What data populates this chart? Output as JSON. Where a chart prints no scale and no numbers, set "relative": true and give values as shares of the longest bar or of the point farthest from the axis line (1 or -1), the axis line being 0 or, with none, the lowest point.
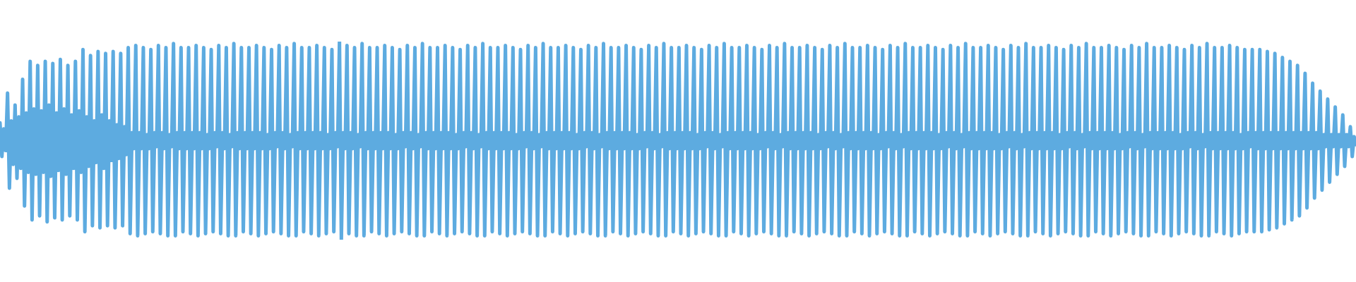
{
  "chart_data": {
    "type": "line",
    "relative": true,
    "color": "#5dabe0",
    "categories": [
      null,
      null,
      null,
      null,
      null,
      null,
      null,
      null,
      null,
      null,
      null,
      null,
      null,
      null,
      null,
      null,
      null,
      null,
      null,
      null,
      null,
      null,
      null,
      null,
      null,
      null,
      null,
      null,
      null,
      null,
      null,
      null,
      null,
      null,
      null,
      null,
      null,
      null,
      null,
      null,
      null,
      null,
      null,
      null,
      null,
      null,
      null,
      null,
      null,
      null,
      null,
      null,
      null,
      null,
      null,
      null,
      null,
      null,
      null,
      null,
      null,
      null,
      null,
      null,
      null,
      null,
      null,
      null,
      null,
      null,
      null,
      null,
      null,
      null,
      null,
      null,
      null,
      null,
      null,
      null,
      null,
      null,
      null,
      null,
      null,
      null,
      null,
      null,
      null,
      null,
      null,
      null,
      null,
      null,
      null,
      null,
      null,
      null,
      null,
      null,
      null,
      null,
      null,
      null,
      null,
      null,
      null,
      null,
      null,
      null,
      null,
      null,
      null,
      null,
      null,
      null,
      null,
      null,
      null,
      null,
      null,
      null,
      null,
      null,
      null,
      null,
      null,
      null,
      null,
      null,
      null,
      null,
      null,
      null,
      null,
      null,
      null,
      null,
      null,
      null,
      null,
      null,
      null,
      null,
      null,
      null,
      null,
      null,
      null,
      null,
      null,
      null,
      null,
      null,
      null,
      null,
      null,
      null,
      null,
      null,
      null,
      null,
      null,
      null,
      null,
      null,
      null,
      null,
      null,
      null,
      null,
      null,
      null,
      null,
      null,
      null,
      null,
      null,
      null,
      null,
      null,
      null,
      null,
      null,
      null,
      null,
      null,
      null,
      null,
      null,
      null,
      null,
      null,
      null,
      null,
      null,
      null,
      null,
      null,
      null,
      null,
      null,
      null,
      null,
      null,
      null,
      null,
      null,
      null,
      null,
      null,
      null,
      null,
      null,
      null,
      null,
      null,
      null,
      null,
      null,
      null,
      null,
      null,
      null,
      null,
      null,
      null,
      null,
      null,
      null,
      null,
      null,
      null,
      null,
      null,
      null,
      null,
      null,
      null,
      null,
      null,
      null,
      null,
      null,
      null,
      null,
      null,
      null,
      null,
      null,
      null,
      null,
      null,
      null,
      null,
      null,
      null,
      null,
      null,
      null,
      null,
      null,
      null,
      null,
      null,
      null,
      null,
      null,
      null,
      null,
      null,
      null,
      null,
      null,
      null,
      null,
      null,
      null,
      null,
      null,
      null,
      null,
      null,
      null,
      null,
      null,
      null,
      null,
      null,
      null,
      null,
      null,
      null,
      null,
      null,
      null,
      null,
      null,
      null,
      null,
      null,
      null,
      null,
      null,
      null,
      null,
      null,
      null,
      null,
      null,
      null,
      null,
      null,
      null,
      null,
      null,
      null,
      null,
      null,
      null,
      null,
      null,
      null,
      null,
      null,
      null,
      null,
      null,
      null,
      null,
      null,
      null,
      null,
      null,
      null,
      null,
      null,
      null,
      null,
      null,
      null,
      null,
      null,
      null,
      null,
      null,
      null,
      null,
      null,
      null,
      null,
      null,
      null,
      null,
      null,
      null,
      null,
      null,
      null,
      null,
      null,
      null,
      null,
      null,
      null,
      null,
      null,
      null,
      null,
      null,
      null,
      null,
      null,
      null,
      null,
      null,
      null,
      null,
      null,
      null,
      null,
      null,
      null,
      null,
      null,
      null,
      null,
      null,
      null,
      null,
      null,
      null,
      null,
      null,
      null,
      null,
      null,
      null,
      null,
      null,
      null,
      null,
      null,
      null,
      null,
      null,
      null,
      null,
      null,
      null,
      null,
      null,
      null,
      null,
      null,
      null,
      null,
      null,
      null,
      null,
      null,
      null,
      null,
      null,
      null,
      null,
      null,
      null,
      null,
      null,
      null,
      null,
      null,
      null,
      null,
      null,
      null,
      null,
      null,
      null,
      null,
      null,
      null,
      null,
      null,
      null,
      null,
      null,
      null,
      null,
      null,
      null,
      null,
      null,
      null,
      null,
      null,
      null,
      null,
      null,
      null,
      null,
      null,
      null,
      null,
      null,
      null,
      null,
      null,
      null,
      null,
      null,
      null,
      null,
      null,
      null,
      null,
      null,
      null,
      null,
      null,
      null,
      null,
      null,
      null,
      null,
      null,
      null,
      null,
      null,
      null,
      null,
      null,
      null,
      null,
      null,
      null,
      null,
      null,
      null,
      null,
      null,
      null,
      null,
      null,
      null,
      null,
      null,
      null,
      null,
      null,
      null,
      null,
      null,
      null,
      null,
      null,
      null,
      null,
      null,
      null,
      null,
      null,
      null,
      null,
      null,
      null,
      null,
      null,
      null,
      null,
      null,
      null,
      null,
      null,
      null,
      null,
      null,
      null,
      null,
      null,
      null,
      null,
      null,
      null,
      null,
      null,
      null,
      null,
      null,
      null,
      null,
      null,
      null,
      null,
      null,
      null,
      null,
      null,
      null,
      null,
      null,
      null,
      null,
      null,
      null,
      null,
      null,
      null,
      null,
      null,
      null,
      null,
      null,
      null,
      null,
      null,
      null,
      null,
      null,
      null,
      null,
      null,
      null,
      null,
      null,
      null,
      null,
      null,
      null,
      null,
      null,
      null,
      null,
      null,
      null,
      null,
      null,
      null,
      null,
      null,
      null,
      null,
      null,
      null,
      null,
      null,
      null,
      null,
      null,
      null,
      null,
      null,
      null,
      null,
      null,
      null,
      null,
      null,
      null,
      null,
      null,
      null,
      null,
      null,
      null,
      null,
      null,
      null,
      null,
      null,
      null,
      null,
      null,
      null,
      null,
      null,
      null,
      null,
      null,
      null,
      null,
      null,
      null,
      null,
      null,
      null,
      null,
      null,
      null,
      null,
      null,
      null,
      null,
      null,
      null,
      null,
      null,
      null,
      null,
      null,
      null,
      null,
      null,
      null,
      null,
      null,
      null,
      null,
      null,
      null,
      null,
      null,
      null,
      null,
      null,
      null,
      null,
      null,
      null,
      null,
      null,
      null,
      null,
      null,
      null,
      null,
      null,
      null,
      null,
      null,
      null,
      null,
      null,
      null,
      null,
      null,
      null,
      null,
      null,
      null,
      null,
      null,
      null,
      null,
      null,
      null,
      null,
      null,
      null,
      null,
      null,
      null,
      null,
      null,
      null,
      null,
      null,
      null,
      null
    ],
    "values": [
      0.59,
      0.42,
      0.56,
      0.45,
      0.74,
      0.26,
      0.6,
      0.38,
      0.68,
      0.31,
      0.62,
      0.36,
      0.81,
      0.17,
      0.64,
      0.34,
      0.9,
      0.1,
      0.66,
      0.33,
      0.88,
      0.12,
      0.65,
      0.34,
      0.9,
      0.09,
      0.68,
      0.32,
      0.89,
      0.11,
      0.64,
      0.35,
      0.91,
      0.1,
      0.66,
      0.33,
      0.88,
      0.12,
      0.63,
      0.36,
      0.9,
      0.1,
      0.65,
      0.34,
      0.96,
      0.04,
      0.62,
      0.37,
      0.93,
      0.07,
      0.6,
      0.39,
      0.95,
      0.06,
      0.63,
      0.36,
      0.94,
      0.07,
      0.6,
      0.4,
      0.95,
      0.06,
      0.58,
      0.41,
      0.94,
      0.07,
      0.57,
      0.43,
      0.97,
      0.03,
      0.54,
      0.46,
      0.98,
      0.02,
      0.54,
      0.46,
      0.97,
      0.03,
      0.53,
      0.46,
      0.96,
      0.04,
      0.54,
      0.47,
      0.98,
      0.03,
      0.54,
      0.46,
      0.97,
      0.02,
      0.53,
      0.47,
      0.99,
      0.02,
      0.54,
      0.46,
      0.97,
      0.04,
      0.54,
      0.46,
      0.97,
      0.03,
      0.54,
      0.46,
      0.98,
      0.02,
      0.54,
      0.46,
      0.97,
      0.03,
      0.53,
      0.46,
      0.96,
      0.04,
      0.54,
      0.47,
      0.98,
      0.03,
      0.54,
      0.46,
      0.97,
      0.02,
      0.53,
      0.47,
      0.99,
      0.02,
      0.54,
      0.46,
      0.97,
      0.04,
      0.54,
      0.46,
      0.97,
      0.03,
      0.54,
      0.46,
      0.98,
      0.02,
      0.54,
      0.46,
      0.97,
      0.03,
      0.53,
      0.46,
      0.96,
      0.04,
      0.54,
      0.47,
      0.98,
      0.03,
      0.54,
      0.46,
      0.97,
      0.02,
      0.53,
      0.47,
      0.99,
      0.02,
      0.54,
      0.46,
      0.97,
      0.04,
      0.54,
      0.46,
      0.97,
      0.03,
      0.54,
      0.46,
      0.98,
      0.02,
      0.54,
      0.46,
      0.97,
      0.03,
      0.53,
      0.46,
      0.96,
      0.04,
      0.54,
      0.47,
      1,
      0,
      0.54,
      0.46,
      0.98,
      0.03,
      0.54,
      0.46,
      0.97,
      0.02,
      0.53,
      0.47,
      0.99,
      0.02,
      0.54,
      0.46,
      0.97,
      0.04,
      0.54,
      0.46,
      0.97,
      0.03,
      0.54,
      0.46,
      0.98,
      0.02,
      0.54,
      0.46,
      0.97,
      0.03,
      0.53,
      0.46,
      0.96,
      0.04,
      0.54,
      0.47,
      0.98,
      0.03,
      0.54,
      0.46,
      0.97,
      0.02,
      0.53,
      0.47,
      0.99,
      0.02,
      0.54,
      0.46,
      0.97,
      0.04,
      0.54,
      0.46,
      0.97,
      0.03,
      0.54,
      0.46,
      0.98,
      0.02,
      0.54,
      0.46,
      0.97,
      0.03,
      0.53,
      0.46,
      0.96,
      0.04,
      0.54,
      0.47,
      0.98,
      0.03,
      0.54,
      0.46,
      0.97,
      0.02,
      0.53,
      0.47,
      0.99,
      0.02,
      0.54,
      0.46,
      0.97,
      0.04,
      0.54,
      0.46,
      0.97,
      0.03,
      0.54,
      0.46,
      0.98,
      0.02,
      0.54,
      0.46,
      0.97,
      0.03,
      0.53,
      0.46,
      0.96,
      0.04,
      0.54,
      0.47,
      0.98,
      0.03,
      0.54,
      0.46,
      0.97,
      0.02,
      0.53,
      0.47,
      0.99,
      0.02,
      0.54,
      0.46,
      0.97,
      0.04,
      0.54,
      0.46,
      0.97,
      0.03,
      0.54,
      0.46,
      0.98,
      0.02,
      0.54,
      0.46,
      0.97,
      0.03,
      0.53,
      0.46,
      0.96,
      0.04,
      0.54,
      0.47,
      0.98,
      0.03,
      0.54,
      0.46,
      0.97,
      0.02,
      0.53,
      0.47,
      0.99,
      0.02,
      0.54,
      0.46,
      0.97,
      0.04,
      0.54,
      0.46,
      0.97,
      0.03,
      0.54,
      0.46,
      0.98,
      0.02,
      0.54,
      0.46,
      0.97,
      0.03,
      0.53,
      0.46,
      0.96,
      0.04,
      0.54,
      0.47,
      0.98,
      0.03,
      0.54,
      0.46,
      0.97,
      0.02,
      0.53,
      0.47,
      0.99,
      0.02,
      0.54,
      0.46,
      0.97,
      0.04,
      0.54,
      0.46,
      0.97,
      0.03,
      0.54,
      0.46,
      0.98,
      0.02,
      0.54,
      0.46,
      0.97,
      0.03,
      0.53,
      0.46,
      0.96,
      0.04,
      0.54,
      0.47,
      0.98,
      0.03,
      0.54,
      0.46,
      0.97,
      0.02,
      0.53,
      0.47,
      0.99,
      0.02,
      0.54,
      0.46,
      0.97,
      0.04,
      0.54,
      0.46,
      0.97,
      0.03,
      0.54,
      0.46,
      0.98,
      0.02,
      0.54,
      0.46,
      0.97,
      0.03,
      0.53,
      0.46,
      0.96,
      0.04,
      0.54,
      0.47,
      0.98,
      0.03,
      0.54,
      0.46,
      0.97,
      0.02,
      0.53,
      0.47,
      0.99,
      0.02,
      0.54,
      0.46,
      0.97,
      0.04,
      0.54,
      0.46,
      0.97,
      0.03,
      0.54,
      0.46,
      0.98,
      0.02,
      0.54,
      0.46,
      0.97,
      0.03,
      0.53,
      0.46,
      0.96,
      0.04,
      0.54,
      0.47,
      0.98,
      0.03,
      0.54,
      0.46,
      0.97,
      0.02,
      0.53,
      0.47,
      0.99,
      0.02,
      0.54,
      0.46,
      0.97,
      0.04,
      0.54,
      0.46,
      0.97,
      0.03,
      0.54,
      0.46,
      0.98,
      0.02,
      0.54,
      0.46,
      0.97,
      0.03,
      0.53,
      0.46,
      0.96,
      0.04,
      0.54,
      0.47,
      0.98,
      0.03,
      0.54,
      0.46,
      0.97,
      0.02,
      0.53,
      0.47,
      0.99,
      0.02,
      0.54,
      0.46,
      0.97,
      0.04,
      0.54,
      0.46,
      0.97,
      0.03,
      0.54,
      0.46,
      0.98,
      0.02,
      0.54,
      0.46,
      0.97,
      0.03,
      0.53,
      0.46,
      0.96,
      0.04,
      0.54,
      0.47,
      0.98,
      0.03,
      0.54,
      0.46,
      0.97,
      0.02,
      0.53,
      0.47,
      0.99,
      0.02,
      0.54,
      0.46,
      0.97,
      0.04,
      0.54,
      0.46,
      0.97,
      0.03,
      0.54,
      0.46,
      0.98,
      0.02,
      0.54,
      0.46,
      0.97,
      0.03,
      0.53,
      0.46,
      0.96,
      0.04,
      0.54,
      0.47,
      0.98,
      0.03,
      0.54,
      0.46,
      0.97,
      0.02,
      0.53,
      0.47,
      0.99,
      0.02,
      0.54,
      0.46,
      0.97,
      0.04,
      0.54,
      0.46,
      0.97,
      0.03,
      0.54,
      0.46,
      0.98,
      0.02,
      0.54,
      0.46,
      0.97,
      0.03,
      0.53,
      0.46,
      0.96,
      0.04,
      0.54,
      0.47,
      0.98,
      0.03,
      0.54,
      0.46,
      0.97,
      0.02,
      0.53,
      0.47,
      0.99,
      0.02,
      0.54,
      0.46,
      0.97,
      0.04,
      0.54,
      0.46,
      0.97,
      0.03,
      0.54,
      0.46,
      0.98,
      0.02,
      0.54,
      0.46,
      0.97,
      0.03,
      0.53,
      0.46,
      0.96,
      0.04,
      0.54,
      0.47,
      0.98,
      0.03,
      0.54,
      0.46,
      0.97,
      0.02,
      0.53,
      0.47,
      0.99,
      0.02,
      0.54,
      0.46,
      0.97,
      0.04,
      0.54,
      0.46,
      0.97,
      0.03,
      0.54,
      0.46,
      0.98,
      0.02,
      0.54,
      0.46,
      0.97,
      0.03,
      0.53,
      0.46,
      0.96,
      0.04,
      0.54,
      0.47,
      0.98,
      0.03,
      0.54,
      0.46,
      0.97,
      0.02,
      0.53,
      0.47,
      0.99,
      0.02,
      0.54,
      0.46,
      0.97,
      0.04,
      0.54,
      0.46,
      0.97,
      0.03,
      0.54,
      0.46,
      0.98,
      0.02,
      0.54,
      0.46,
      0.97,
      0.03,
      0.53,
      0.46,
      0.96,
      0.04,
      0.54,
      0.47,
      0.96,
      0.04,
      0.54,
      0.46,
      0.96,
      0.04,
      0.54,
      0.46,
      0.95,
      0.05,
      0.54,
      0.46,
      0.94,
      0.06,
      0.54,
      0.46,
      0.92,
      0.08,
      0.54,
      0.46,
      0.9,
      0.1,
      0.54,
      0.46,
      0.88,
      0.12,
      0.54,
      0.46,
      0.84,
      0.16,
      0.54,
      0.46,
      0.79,
      0.21,
      0.54,
      0.46,
      0.75,
      0.25,
      0.53,
      0.47,
      0.71,
      0.29,
      0.53,
      0.47,
      0.67,
      0.33,
      0.53,
      0.47,
      0.63,
      0.37,
      0.53,
      0.47,
      0.57,
      0.42,
      0.52,
      0.48
    ]
  }
}
